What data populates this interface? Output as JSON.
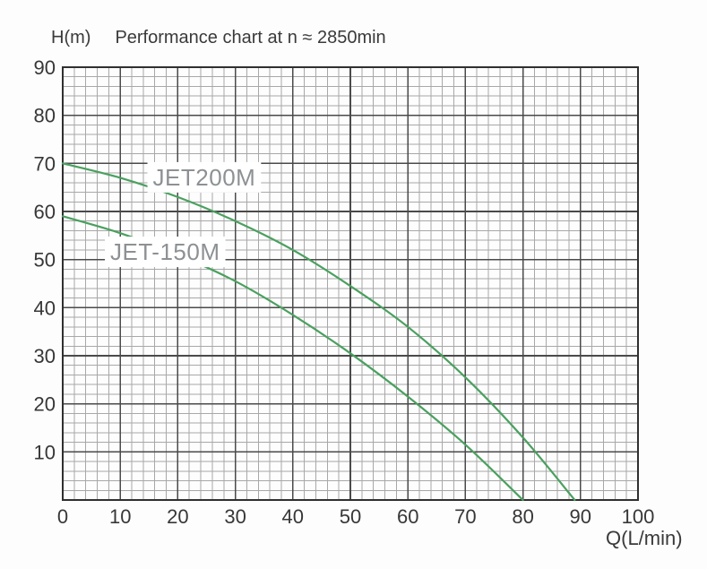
{
  "chart_data": {
    "type": "line",
    "title": "Performance chart at n ≈ 2850min",
    "ylabel": "H(m)",
    "xlabel": "Q(L/min)",
    "xlim": [
      0,
      100
    ],
    "ylim": [
      0,
      90
    ],
    "x_ticks": [
      0,
      10,
      20,
      30,
      40,
      50,
      60,
      70,
      80,
      90,
      100
    ],
    "y_ticks": [
      10,
      20,
      30,
      40,
      50,
      60,
      70,
      80,
      90
    ],
    "grid": {
      "minor_step": 2,
      "major_step": 10,
      "visible": true
    },
    "legend_position": "inline-labels",
    "colors": {
      "curve": "#4aa05f",
      "grid_minor": "#a8a8a8",
      "grid_major": "#4a4a4a",
      "border": "#303030",
      "tick_text": "#373737",
      "series_label_text": "#8d9194",
      "series_label_bg": "#ffffff"
    },
    "series": [
      {
        "name": "JET200M",
        "points": [
          [
            0,
            70
          ],
          [
            10,
            67
          ],
          [
            20,
            63
          ],
          [
            30,
            58
          ],
          [
            40,
            52
          ],
          [
            50,
            44.5
          ],
          [
            60,
            36
          ],
          [
            70,
            25.5
          ],
          [
            80,
            13
          ],
          [
            89,
            0
          ]
        ],
        "label_anchor": [
          24.6,
          67.1
        ]
      },
      {
        "name": "JET-150M",
        "points": [
          [
            0,
            59
          ],
          [
            10,
            55.5
          ],
          [
            20,
            51
          ],
          [
            30,
            45.5
          ],
          [
            40,
            38.5
          ],
          [
            50,
            30.5
          ],
          [
            60,
            21.5
          ],
          [
            70,
            11.5
          ],
          [
            80,
            0
          ]
        ],
        "label_anchor": [
          17.8,
          51.6
        ]
      }
    ]
  }
}
